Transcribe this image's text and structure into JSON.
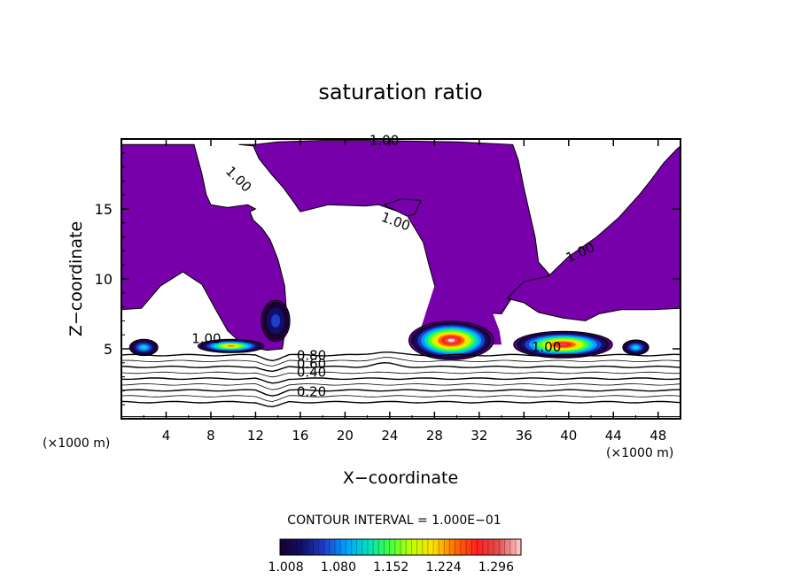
{
  "chart_data": {
    "type": "heatmap",
    "title": "saturation ratio",
    "xlabel": "X−coordinate",
    "ylabel": "Z−coordinate",
    "x_unit_left": "(×1000 m)",
    "x_unit_right": "(×1000 m)",
    "xlim": [
      0,
      50
    ],
    "ylim": [
      0,
      20
    ],
    "x_ticks": [
      4,
      8,
      12,
      16,
      20,
      24,
      28,
      32,
      36,
      40,
      44,
      48
    ],
    "y_ticks": [
      5,
      10,
      15
    ],
    "contour_interval_text": "CONTOUR INTERVAL = 1.000E−01",
    "colorbar": {
      "min": 1.0,
      "max": 1.33,
      "tick_values": [
        1.008,
        1.08,
        1.152,
        1.224,
        1.296
      ],
      "tick_labels": [
        "1.008",
        "1.080",
        "1.152",
        "1.224",
        "1.296"
      ],
      "colors": [
        "#1a0033",
        "#10106a",
        "#1f3dc8",
        "#00a0ff",
        "#00e0c0",
        "#40ff40",
        "#c0ff00",
        "#ffe000",
        "#ff6a00",
        "#ff2020",
        "#e05050",
        "#ffd0d0"
      ]
    },
    "saturated_fill_color": "#7700aa",
    "contour_labels": [
      {
        "text": "1.00",
        "x": 23.5,
        "z": 19.6
      },
      {
        "text": "1.00",
        "x": 10.2,
        "z": 16.9
      },
      {
        "text": "1.00",
        "x": 24.4,
        "z": 13.8
      },
      {
        "text": "1.00",
        "x": 41.2,
        "z": 11.6
      },
      {
        "text": "1.00",
        "x": 7.6,
        "z": 5.4
      },
      {
        "text": "1.00",
        "x": 38.0,
        "z": 4.8
      },
      {
        "text": "0.80",
        "x": 17.0,
        "z": 4.2
      },
      {
        "text": "0.60",
        "x": 17.0,
        "z": 3.6
      },
      {
        "text": "0.40",
        "x": 17.0,
        "z": 3.0
      },
      {
        "text": "0.20",
        "x": 17.0,
        "z": 1.6
      }
    ],
    "sub_saturated_levels": [
      0.9,
      0.8,
      0.7,
      0.6,
      0.5,
      0.4,
      0.3,
      0.2,
      0.1
    ],
    "supersaturated_peaks": [
      {
        "x": 29.5,
        "z": 5.6,
        "max": 1.33
      },
      {
        "x": 39.5,
        "z": 5.3,
        "max": 1.31
      },
      {
        "x": 9.8,
        "z": 5.2,
        "max": 1.22
      },
      {
        "x": 2.0,
        "z": 5.1,
        "max": 1.1
      },
      {
        "x": 46.0,
        "z": 5.1,
        "max": 1.1
      },
      {
        "x": 13.8,
        "z": 7.0,
        "max": 1.02
      }
    ]
  }
}
